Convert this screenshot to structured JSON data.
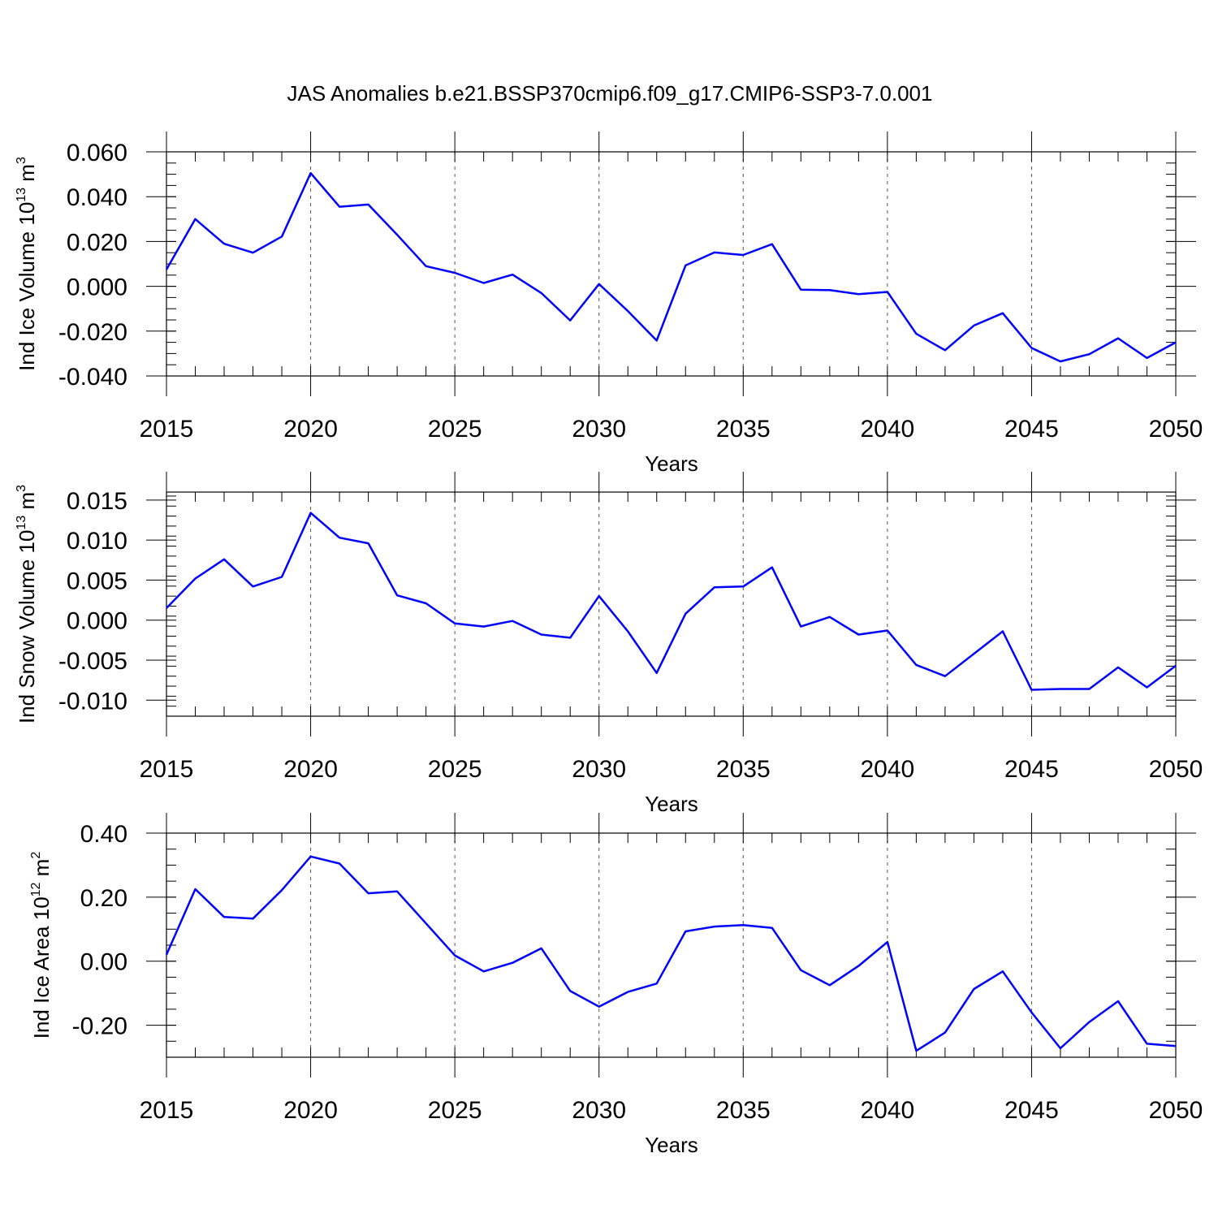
{
  "title": "JAS Anomalies b.e21.BSSP370cmip6.f09_g17.CMIP6-SSP3-7.0.001",
  "line_color": "#0000ff",
  "chart_data": [
    {
      "type": "line",
      "xlabel": "Years",
      "ylabel": {
        "base": "Ind Ice Volume 10",
        "exp": "13",
        "unit": " m",
        "unit_exp": "3"
      },
      "xlim": [
        2015,
        2050
      ],
      "ylim": [
        -0.04,
        0.06
      ],
      "xticks": [
        2015,
        2020,
        2025,
        2030,
        2035,
        2040,
        2045,
        2050
      ],
      "xtick_labels": [
        "2015",
        "2020",
        "2025",
        "2030",
        "2035",
        "2040",
        "2045",
        "2050"
      ],
      "yticks": [
        -0.04,
        -0.02,
        0.0,
        0.02,
        0.04,
        0.06
      ],
      "ytick_labels": [
        "-0.040",
        "-0.020",
        "0.000",
        "0.020",
        "0.040",
        "0.060"
      ],
      "grid": "vertical dashed at major x ticks",
      "x": [
        2015,
        2016,
        2017,
        2018,
        2019,
        2020,
        2021,
        2022,
        2023,
        2024,
        2025,
        2026,
        2027,
        2028,
        2029,
        2030,
        2031,
        2032,
        2033,
        2034,
        2035,
        2036,
        2037,
        2038,
        2039,
        2040,
        2041,
        2042,
        2043,
        2044,
        2045,
        2046,
        2047,
        2048,
        2049,
        2050
      ],
      "y": [
        0.0075,
        0.03,
        0.019,
        0.015,
        0.0222,
        0.0505,
        0.0355,
        0.0365,
        0.023,
        0.009,
        0.006,
        0.0015,
        0.0052,
        -0.003,
        -0.0152,
        0.001,
        -0.011,
        -0.0242,
        0.0093,
        0.0151,
        0.014,
        0.0188,
        -0.0015,
        -0.0017,
        -0.0035,
        -0.0025,
        -0.0212,
        -0.0285,
        -0.0175,
        -0.012,
        -0.0275,
        -0.0335,
        -0.0303,
        -0.0232,
        -0.032,
        -0.025
      ]
    },
    {
      "type": "line",
      "xlabel": "Years",
      "ylabel": {
        "base": "Ind Snow Volume 10",
        "exp": "13",
        "unit": " m",
        "unit_exp": "3"
      },
      "xlim": [
        2015,
        2050
      ],
      "ylim": [
        -0.012,
        0.016
      ],
      "xticks": [
        2015,
        2020,
        2025,
        2030,
        2035,
        2040,
        2045,
        2050
      ],
      "xtick_labels": [
        "2015",
        "2020",
        "2025",
        "2030",
        "2035",
        "2040",
        "2045",
        "2050"
      ],
      "yticks": [
        -0.01,
        -0.005,
        0.0,
        0.005,
        0.01,
        0.015
      ],
      "ytick_labels": [
        "-0.010",
        "-0.005",
        "0.000",
        "0.005",
        "0.010",
        "0.015"
      ],
      "grid": "vertical dashed at major x ticks",
      "x": [
        2015,
        2016,
        2017,
        2018,
        2019,
        2020,
        2021,
        2022,
        2023,
        2024,
        2025,
        2026,
        2027,
        2028,
        2029,
        2030,
        2031,
        2032,
        2033,
        2034,
        2035,
        2036,
        2037,
        2038,
        2039,
        2040,
        2041,
        2042,
        2043,
        2044,
        2045,
        2046,
        2047,
        2048,
        2049,
        2050
      ],
      "y": [
        0.0015,
        0.0052,
        0.0076,
        0.0042,
        0.0054,
        0.0134,
        0.0103,
        0.0096,
        0.0031,
        0.0021,
        -0.0004,
        -0.0008,
        -0.0001,
        -0.0018,
        -0.0022,
        0.003,
        -0.0014,
        -0.0066,
        0.0008,
        0.0041,
        0.0042,
        0.0066,
        -0.0008,
        0.0004,
        -0.0018,
        -0.0013,
        -0.0056,
        -0.007,
        -0.0042,
        -0.0014,
        -0.0087,
        -0.0086,
        -0.0086,
        -0.0059,
        -0.0084,
        -0.0057
      ]
    },
    {
      "type": "line",
      "xlabel": "Years",
      "ylabel": {
        "base": "Ind Ice Area 10",
        "exp": "12",
        "unit": " m",
        "unit_exp": "2"
      },
      "xlim": [
        2015,
        2050
      ],
      "ylim": [
        -0.3,
        0.4
      ],
      "xticks": [
        2015,
        2020,
        2025,
        2030,
        2035,
        2040,
        2045,
        2050
      ],
      "xtick_labels": [
        "2015",
        "2020",
        "2025",
        "2030",
        "2035",
        "2040",
        "2045",
        "2050"
      ],
      "yticks": [
        -0.2,
        0.0,
        0.2,
        0.4
      ],
      "ytick_labels": [
        "-0.20",
        "0.00",
        "0.20",
        "0.40"
      ],
      "grid": "vertical dashed at major x ticks",
      "x": [
        2015,
        2016,
        2017,
        2018,
        2019,
        2020,
        2021,
        2022,
        2023,
        2024,
        2025,
        2026,
        2027,
        2028,
        2029,
        2030,
        2031,
        2032,
        2033,
        2034,
        2035,
        2036,
        2037,
        2038,
        2039,
        2040,
        2041,
        2042,
        2043,
        2044,
        2045,
        2046,
        2047,
        2048,
        2049,
        2050
      ],
      "y": [
        0.02,
        0.225,
        0.138,
        0.133,
        0.222,
        0.327,
        0.305,
        0.212,
        0.218,
        0.118,
        0.018,
        -0.032,
        -0.005,
        0.04,
        -0.093,
        -0.142,
        -0.096,
        -0.07,
        0.093,
        0.108,
        0.113,
        0.104,
        -0.028,
        -0.075,
        -0.015,
        0.06,
        -0.28,
        -0.223,
        -0.087,
        -0.032,
        -0.16,
        -0.272,
        -0.19,
        -0.125,
        -0.258,
        -0.265
      ]
    }
  ]
}
